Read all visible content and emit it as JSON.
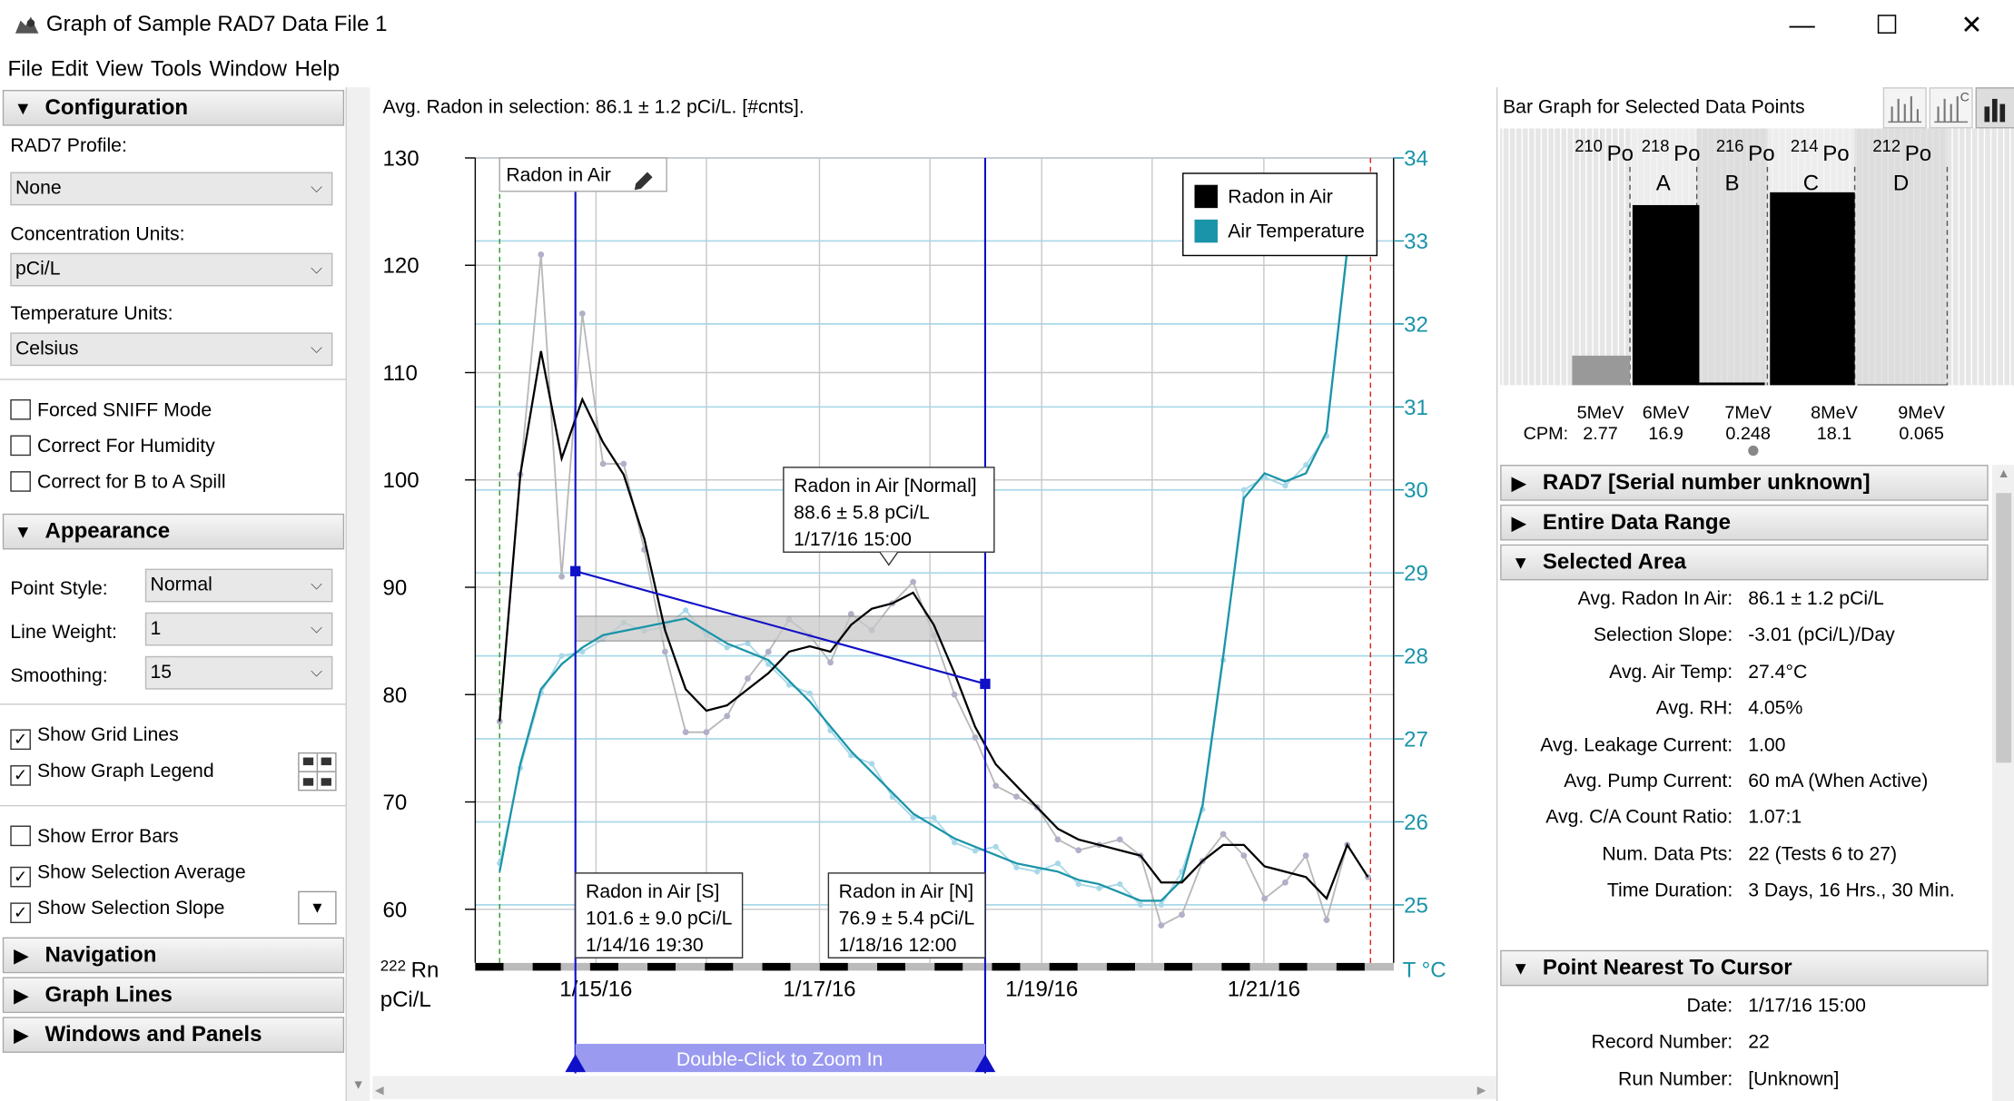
{
  "window": {
    "title": "Graph of Sample RAD7 Data File 1",
    "minimize": "—",
    "maximize": "☐",
    "close": "✕"
  },
  "menu": [
    "File",
    "Edit",
    "View",
    "Tools",
    "Window",
    "Help"
  ],
  "left": {
    "configuration": "Configuration",
    "rad7_profile_label": "RAD7 Profile:",
    "rad7_profile": "None",
    "conc_units_label": "Concentration Units:",
    "conc_units": "pCi/L",
    "temp_units_label": "Temperature Units:",
    "temp_units": "Celsius",
    "forced_sniff": "Forced SNIFF Mode",
    "correct_humidity": "Correct For Humidity",
    "correct_spill": "Correct for B to A Spill",
    "appearance": "Appearance",
    "point_style_label": "Point Style:",
    "point_style": "Normal",
    "line_weight_label": "Line Weight:",
    "line_weight": "1",
    "smoothing_label": "Smoothing:",
    "smoothing": "15",
    "show_grid": "Show Grid Lines",
    "show_legend": "Show Graph Legend",
    "show_error": "Show Error Bars",
    "show_sel_avg": "Show Selection Average",
    "show_sel_slope": "Show Selection Slope",
    "navigation": "Navigation",
    "graph_lines": "Graph Lines",
    "windows_panels": "Windows and Panels"
  },
  "chart": {
    "status": "Avg. Radon in selection: 86.1 ± 1.2 pCi/L.  [#cnts].",
    "series_tag": "Radon in Air",
    "legend_radon": "Radon in Air",
    "legend_temp": "Air Temperature",
    "callout_top": [
      "Radon in Air [Normal]",
      "88.6 ± 5.8 pCi/L",
      "1/17/16 15:00"
    ],
    "callout_s": [
      "Radon in Air [S]",
      "101.6 ± 9.0 pCi/L",
      "1/14/16 19:30"
    ],
    "callout_n": [
      "Radon in Air [N]",
      "76.9 ± 5.4 pCi/L",
      "1/18/16 12:00"
    ],
    "zoom_hint": "Double-Click to Zoom In",
    "y_left_unit_sup": "222",
    "y_left_unit": "Rn",
    "y_left_unit2": "pCi/L",
    "y_right_unit": "T °C",
    "colors": {
      "radon": "#000000",
      "temp": "#1a94a8",
      "selection": "#1010c8",
      "temp_light": "#a8d8e8"
    }
  },
  "chart_data": {
    "type": "line",
    "x_ticks": [
      "1/15/16",
      "1/17/16",
      "1/19/16",
      "1/21/16"
    ],
    "y_left": {
      "ticks": [
        60,
        70,
        80,
        90,
        100,
        110,
        120,
        130
      ],
      "range": [
        55,
        130
      ]
    },
    "y_right": {
      "ticks": [
        25,
        26,
        27,
        28,
        29,
        30,
        31,
        32,
        33,
        34
      ],
      "range": [
        24.3,
        34
      ]
    },
    "series": [
      {
        "name": "Radon in Air",
        "values": [
          77.5,
          100.5,
          112,
          102,
          107.5,
          103.5,
          100.5,
          94.5,
          86,
          80.5,
          78.5,
          79,
          80.5,
          82,
          84,
          84.5,
          84,
          86.5,
          88,
          88.5,
          89.5,
          86.5,
          82,
          77,
          73.5,
          71.5,
          69.5,
          67.5,
          66.5,
          66,
          65.5,
          65,
          62.5,
          62.5,
          64.5,
          66,
          66,
          64,
          63.5,
          63,
          61,
          66,
          63
        ]
      },
      {
        "name": "Air Temperature",
        "values": [
          25.4,
          26.7,
          27.6,
          27.9,
          28.1,
          28.25,
          28.3,
          28.35,
          28.4,
          28.45,
          28.3,
          28.15,
          28.05,
          27.95,
          27.7,
          27.45,
          27.15,
          26.85,
          26.6,
          26.35,
          26.1,
          25.95,
          25.8,
          25.7,
          25.6,
          25.5,
          25.45,
          25.4,
          25.3,
          25.25,
          25.15,
          25.05,
          25.05,
          25.3,
          26.2,
          28.0,
          29.9,
          30.2,
          30.1,
          30.2,
          30.7,
          32.9,
          33.6
        ]
      }
    ]
  },
  "barchart": {
    "title": "Bar Graph for Selected Data Points",
    "isotopes": [
      {
        "mass": "210",
        "el": "Po"
      },
      {
        "mass": "218",
        "el": "Po"
      },
      {
        "mass": "216",
        "el": "Po"
      },
      {
        "mass": "214",
        "el": "Po"
      },
      {
        "mass": "212",
        "el": "Po"
      }
    ],
    "windows": [
      "A",
      "B",
      "C",
      "D"
    ],
    "energies": [
      "5MeV",
      "6MeV",
      "7MeV",
      "8MeV",
      "9MeV"
    ],
    "cpm_label": "CPM:",
    "cpm": [
      "2.77",
      "16.9",
      "0.248",
      "18.1",
      "0.065"
    ],
    "bar_values": [
      2.77,
      16.9,
      0.248,
      18.1,
      0.065
    ]
  },
  "right": {
    "rad7": "RAD7 [Serial number unknown]",
    "entire": "Entire Data Range",
    "selected": "Selected Area",
    "sel_rows": [
      {
        "k": "Avg. Radon In Air:",
        "v": "86.1 ± 1.2 pCi/L"
      },
      {
        "k": "Selection Slope:",
        "v": "-3.01 (pCi/L)/Day"
      },
      {
        "k": "Avg. Air Temp:",
        "v": "27.4°C"
      },
      {
        "k": "Avg. RH:",
        "v": "4.05%"
      },
      {
        "k": "Avg. Leakage Current:",
        "v": "1.00"
      },
      {
        "k": "Avg. Pump Current:",
        "v": "60 mA (When Active)"
      },
      {
        "k": "Avg. C/A Count Ratio:",
        "v": "1.07:1"
      },
      {
        "k": "Num. Data Pts:",
        "v": "22 (Tests 6 to 27)"
      },
      {
        "k": "Time Duration:",
        "v": "3 Days, 16 Hrs., 30 Min."
      }
    ],
    "nearest": "Point Nearest To Cursor",
    "near_rows": [
      {
        "k": "Date:",
        "v": "1/17/16 15:00"
      },
      {
        "k": "Record Number:",
        "v": "22"
      },
      {
        "k": "Run Number:",
        "v": "[Unknown]"
      }
    ]
  }
}
